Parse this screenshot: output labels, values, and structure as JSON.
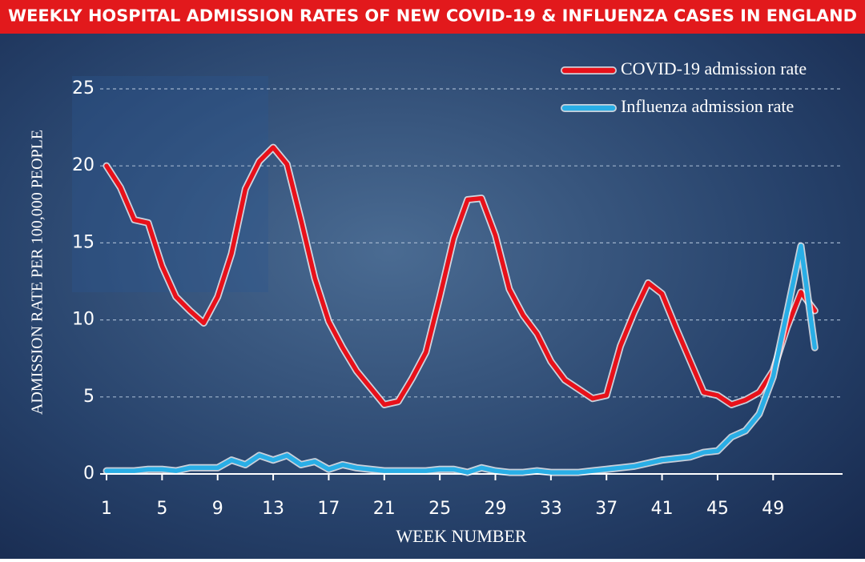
{
  "chart_data": {
    "type": "line",
    "title": "WEEKLY HOSPITAL ADMISSION RATES OF NEW COVID-19 & INFLUENZA CASES IN ENGLAND",
    "x_label": "WEEK NUMBER",
    "y_label": "ADMISSION RATE PER 100,000 PEOPLE",
    "x": [
      1,
      2,
      3,
      4,
      5,
      6,
      7,
      8,
      9,
      10,
      11,
      12,
      13,
      14,
      15,
      16,
      17,
      18,
      19,
      20,
      21,
      22,
      23,
      24,
      25,
      26,
      27,
      28,
      29,
      30,
      31,
      32,
      33,
      34,
      35,
      36,
      37,
      38,
      39,
      40,
      41,
      42,
      43,
      44,
      45,
      46,
      47,
      48,
      49,
      50,
      51,
      52
    ],
    "xlim": [
      1,
      54
    ],
    "xticks": [
      1,
      5,
      9,
      13,
      17,
      21,
      25,
      29,
      33,
      37,
      41,
      45,
      49
    ],
    "ylim": [
      0,
      25
    ],
    "yticks": [
      0,
      5,
      10,
      15,
      20,
      25
    ],
    "grid": true,
    "legend": "top-right",
    "series": [
      {
        "name": "COVID-19 admission rate",
        "color": "#e8111a",
        "values": [
          20,
          18.6,
          16.5,
          16.3,
          13.5,
          11.5,
          10.6,
          9.8,
          11.5,
          14.3,
          18.5,
          20.3,
          21.2,
          20.1,
          16.5,
          12.7,
          9.9,
          8.2,
          6.7,
          5.6,
          4.5,
          4.7,
          6.2,
          7.9,
          11.5,
          15.3,
          17.8,
          17.9,
          15.5,
          12,
          10.3,
          9.1,
          7.3,
          6.1,
          5.5,
          4.9,
          5.1,
          8.3,
          10.5,
          12.4,
          11.7,
          9.5,
          7.4,
          5.3,
          5.1,
          4.5,
          4.8,
          5.3,
          6.7,
          9.5,
          11.8,
          10.6
        ]
      },
      {
        "name": "Influenza admission rate",
        "color": "#29aee6",
        "values": [
          0.2,
          0.2,
          0.2,
          0.3,
          0.3,
          0.2,
          0.4,
          0.4,
          0.4,
          0.9,
          0.6,
          1.2,
          0.9,
          1.2,
          0.6,
          0.8,
          0.3,
          0.6,
          0.4,
          0.3,
          0.2,
          0.2,
          0.2,
          0.2,
          0.3,
          0.3,
          0.1,
          0.4,
          0.2,
          0.1,
          0.1,
          0.2,
          0.1,
          0.1,
          0.1,
          0.2,
          0.3,
          0.4,
          0.5,
          0.7,
          0.9,
          1,
          1.1,
          1.4,
          1.5,
          2.4,
          2.8,
          3.9,
          6.3,
          10.5,
          14.8,
          8.2
        ]
      }
    ]
  }
}
